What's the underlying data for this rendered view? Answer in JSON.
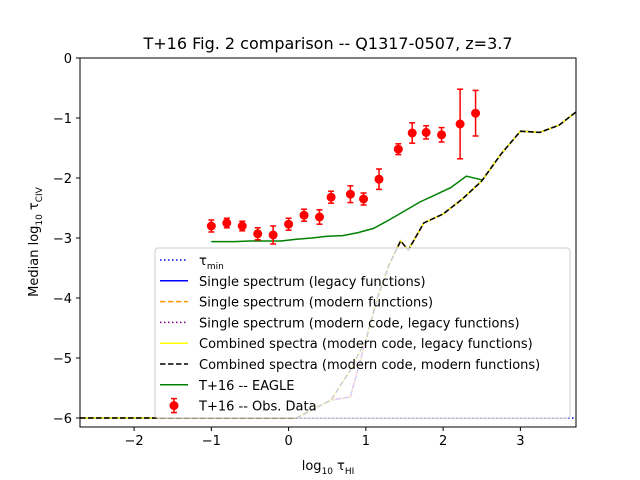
{
  "chart_data": {
    "type": "line",
    "title": "T+16 Fig. 2 comparison -- Q1317-0507, z=3.7",
    "xlabel": {
      "base": "log",
      "sub": "10",
      "var": "τ",
      "varsub": "HI"
    },
    "ylabel": {
      "base": "Median log",
      "sub": "10",
      "var": "τ",
      "varsub": "CIV"
    },
    "xlim": [
      -2.7,
      3.72
    ],
    "ylim": [
      -6.15,
      0
    ],
    "xticks": [
      "-2",
      "-1",
      "0",
      "1",
      "2",
      "3"
    ],
    "xtick_values": [
      -2,
      -1,
      0,
      1,
      2,
      3
    ],
    "yticks": [
      "0",
      "-1",
      "-2",
      "-3",
      "-4",
      "-5",
      "-6"
    ],
    "ytick_values": [
      0,
      -1,
      -2,
      -3,
      -4,
      -5,
      -6
    ],
    "grid": false,
    "legend_position": "lower-right",
    "series": [
      {
        "name": "τmin",
        "legend": {
          "text": "τ",
          "sub": "min"
        },
        "color": "#0000ff",
        "style": "dotted",
        "x": [
          -2.7,
          3.72
        ],
        "y": [
          -6,
          -6
        ]
      },
      {
        "name": "Single spectrum (legacy functions)",
        "color": "#0000ff",
        "style": "solid",
        "x": [
          -2.7,
          -1.7,
          -0.9,
          -0.3,
          0.1,
          0.55,
          0.8,
          1.0,
          1.15,
          1.3,
          1.45,
          1.55,
          1.75,
          2.0,
          2.25,
          2.5,
          2.75,
          3.0,
          3.25,
          3.5,
          3.72
        ],
        "y": [
          -6.0,
          -6.0,
          -6.0,
          -6.0,
          -6.0,
          -5.7,
          -5.65,
          -4.7,
          -4.0,
          -3.45,
          -3.05,
          -3.2,
          -2.75,
          -2.6,
          -2.35,
          -2.05,
          -1.6,
          -1.22,
          -1.24,
          -1.12,
          -0.9
        ]
      },
      {
        "name": "Single spectrum (modern functions)",
        "color": "#ff9900",
        "style": "dashed",
        "x": [
          -2.7,
          -1.7,
          -0.9,
          -0.3,
          0.1,
          0.55,
          0.8,
          1.0,
          1.15,
          1.3,
          1.45,
          1.55,
          1.75,
          2.0,
          2.25,
          2.5,
          2.75,
          3.0,
          3.25,
          3.5,
          3.72
        ],
        "y": [
          -6.0,
          -6.0,
          -6.0,
          -6.0,
          -6.0,
          -5.7,
          -5.65,
          -4.7,
          -4.0,
          -3.45,
          -3.05,
          -3.2,
          -2.75,
          -2.6,
          -2.35,
          -2.05,
          -1.6,
          -1.22,
          -1.24,
          -1.12,
          -0.9
        ]
      },
      {
        "name": "Single spectrum (modern code, legacy functions)",
        "color": "#800080",
        "style": "dotted",
        "x": [
          -2.7,
          -1.7,
          -0.9,
          -0.3,
          0.1,
          0.55,
          0.8,
          1.0,
          1.15,
          1.3,
          1.45,
          1.55,
          1.75,
          2.0,
          2.25,
          2.5,
          2.75,
          3.0,
          3.25,
          3.5,
          3.72
        ],
        "y": [
          -6.0,
          -6.0,
          -6.0,
          -6.0,
          -6.0,
          -5.7,
          -5.65,
          -4.7,
          -4.0,
          -3.45,
          -3.05,
          -3.2,
          -2.75,
          -2.6,
          -2.35,
          -2.05,
          -1.6,
          -1.22,
          -1.24,
          -1.12,
          -0.9
        ]
      },
      {
        "name": "Combined spectra (modern code, legacy functions)",
        "color": "#ffff00",
        "style": "solid",
        "x": [
          -2.7,
          -1.7,
          -0.9,
          -0.3,
          0.1,
          0.55,
          0.8,
          1.0,
          1.15,
          1.3,
          1.45,
          1.55,
          1.75,
          2.0,
          2.25,
          2.5,
          2.75,
          3.0,
          3.25,
          3.5,
          3.72
        ],
        "y": [
          -6.0,
          -6.0,
          -6.0,
          -6.0,
          -6.0,
          -5.7,
          -5.2,
          -4.7,
          -4.0,
          -3.45,
          -3.05,
          -3.2,
          -2.75,
          -2.6,
          -2.35,
          -2.05,
          -1.6,
          -1.22,
          -1.24,
          -1.12,
          -0.9
        ]
      },
      {
        "name": "Combined spectra (modern code, modern functions)",
        "color": "#000000",
        "style": "dashed",
        "x": [
          -2.7,
          -1.7,
          -0.9,
          -0.3,
          0.1,
          0.55,
          0.8,
          1.0,
          1.15,
          1.3,
          1.45,
          1.55,
          1.75,
          2.0,
          2.25,
          2.5,
          2.75,
          3.0,
          3.25,
          3.5,
          3.72
        ],
        "y": [
          -6.0,
          -6.0,
          -6.0,
          -6.0,
          -6.0,
          -5.7,
          -5.2,
          -4.7,
          -4.0,
          -3.45,
          -3.05,
          -3.2,
          -2.75,
          -2.6,
          -2.35,
          -2.05,
          -1.6,
          -1.22,
          -1.24,
          -1.12,
          -0.9
        ]
      },
      {
        "name": "T+16 -- EAGLE",
        "color": "#008000",
        "style": "solid",
        "x": [
          -1.0,
          -0.7,
          -0.5,
          -0.3,
          -0.1,
          0.1,
          0.3,
          0.5,
          0.7,
          0.9,
          1.1,
          1.3,
          1.5,
          1.7,
          1.9,
          2.1,
          2.3,
          2.5
        ],
        "y": [
          -3.06,
          -3.06,
          -3.05,
          -3.05,
          -3.05,
          -3.02,
          -3.0,
          -2.97,
          -2.96,
          -2.91,
          -2.84,
          -2.7,
          -2.55,
          -2.4,
          -2.28,
          -2.16,
          -1.97,
          -2.03
        ]
      },
      {
        "name": "T+16 -- Obs. Data",
        "color": "#ff0000",
        "style": "errorbar",
        "x": [
          -1.0,
          -0.8,
          -0.6,
          -0.4,
          -0.2,
          0.0,
          0.2,
          0.4,
          0.55,
          0.8,
          0.97,
          1.17,
          1.42,
          1.6,
          1.78,
          1.98,
          2.22,
          2.42
        ],
        "y": [
          -2.8,
          -2.75,
          -2.8,
          -2.93,
          -2.95,
          -2.77,
          -2.62,
          -2.65,
          -2.32,
          -2.27,
          -2.35,
          -2.02,
          -1.52,
          -1.25,
          -1.24,
          -1.28,
          -1.1,
          -0.92
        ],
        "yerr": [
          0.1,
          0.08,
          0.08,
          0.1,
          0.15,
          0.1,
          0.1,
          0.12,
          0.1,
          0.14,
          0.1,
          0.17,
          0.09,
          0.17,
          0.11,
          0.12,
          0.58,
          0.38
        ]
      }
    ]
  }
}
